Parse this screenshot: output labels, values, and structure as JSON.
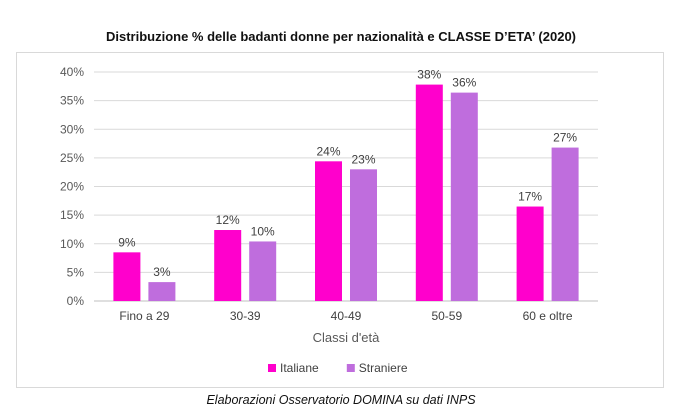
{
  "title": "Distribuzione % delle badanti donne per nazionalità e CLASSE D’ETA’ (2020)",
  "caption": "Elaborazioni Osservatorio DOMINA su dati INPS",
  "chart_data": {
    "type": "bar",
    "title": "Distribuzione % delle badanti donne per nazionalità e CLASSE D’ETA’ (2020)",
    "xlabel": "Classi d'età",
    "ylabel": "",
    "categories": [
      "Fino a 29",
      "30-39",
      "40-49",
      "50-59",
      "60 e oltre"
    ],
    "ylim": [
      0,
      40
    ],
    "yticks": [
      "0%",
      "5%",
      "10%",
      "15%",
      "20%",
      "25%",
      "30%",
      "35%",
      "40%"
    ],
    "grid": true,
    "legend_position": "bottom",
    "series": [
      {
        "name": "Italiane",
        "color": "#ff00cc",
        "values": [
          8.5,
          12.4,
          24.4,
          37.8,
          16.5
        ],
        "labels": [
          "9%",
          "12%",
          "24%",
          "38%",
          "17%"
        ]
      },
      {
        "name": "Straniere",
        "color": "#bf6ddd",
        "values": [
          3.3,
          10.4,
          23.0,
          36.4,
          26.8
        ],
        "labels": [
          "3%",
          "10%",
          "23%",
          "36%",
          "27%"
        ]
      }
    ]
  }
}
